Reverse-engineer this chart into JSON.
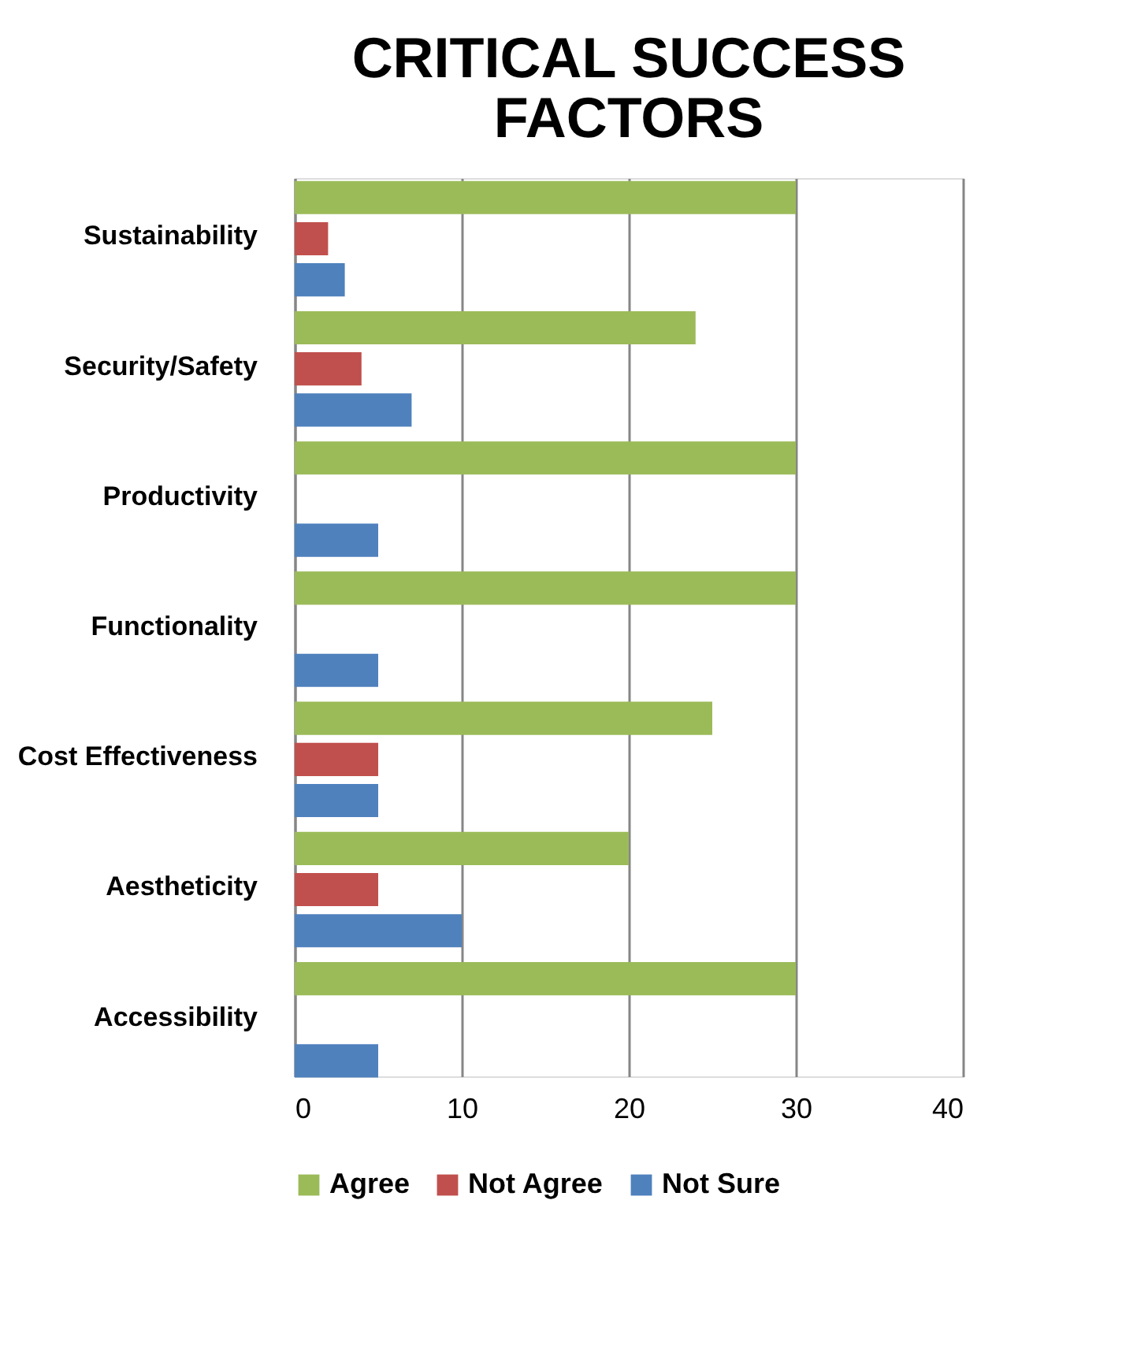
{
  "chart_data": {
    "type": "bar",
    "orientation": "horizontal",
    "title": "CRITICAL SUCCESS FACTORS",
    "categories": [
      "Sustainability",
      "Security/Safety",
      "Productivity",
      "Functionality",
      "Cost Effectiveness",
      "Aestheticity",
      "Accessibility"
    ],
    "series": [
      {
        "name": "Agree",
        "color": "#9bbb59",
        "values": [
          30,
          24,
          30,
          30,
          25,
          20,
          30
        ]
      },
      {
        "name": "Not Agree",
        "color": "#c0504d",
        "values": [
          2,
          4,
          0,
          0,
          5,
          5,
          0
        ]
      },
      {
        "name": "Not Sure",
        "color": "#4f81bd",
        "values": [
          3,
          7,
          5,
          5,
          5,
          10,
          5
        ]
      }
    ],
    "xlim": [
      0,
      40
    ],
    "xticks": [
      0,
      10,
      20,
      30,
      40
    ],
    "grid": "x",
    "legend": "bottom"
  }
}
